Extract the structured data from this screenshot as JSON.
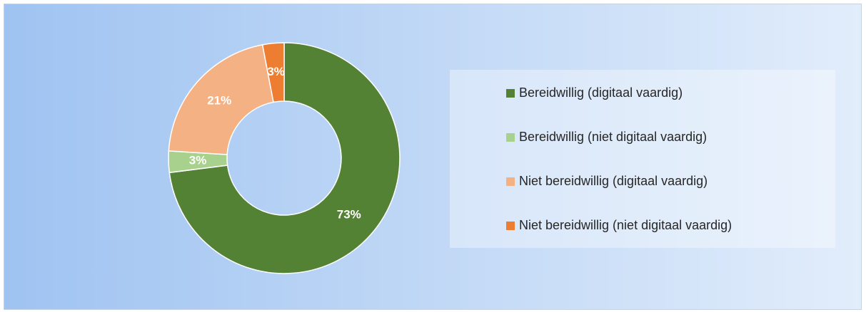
{
  "chart_data": {
    "type": "donut",
    "categories": [
      "Bereidwillig (digitaal vaardig)",
      "Bereidwillig (niet digitaal vaardig)",
      "Niet bereidwillig (digitaal vaardig)",
      "Niet bereidwillig (niet digitaal vaardig)"
    ],
    "values": [
      73,
      3,
      21,
      3
    ],
    "value_labels": [
      "73%",
      "3%",
      "21%",
      "3%"
    ],
    "colors": [
      "#548235",
      "#a9d18e",
      "#f4b183",
      "#ed7d31"
    ],
    "legend": "right"
  }
}
